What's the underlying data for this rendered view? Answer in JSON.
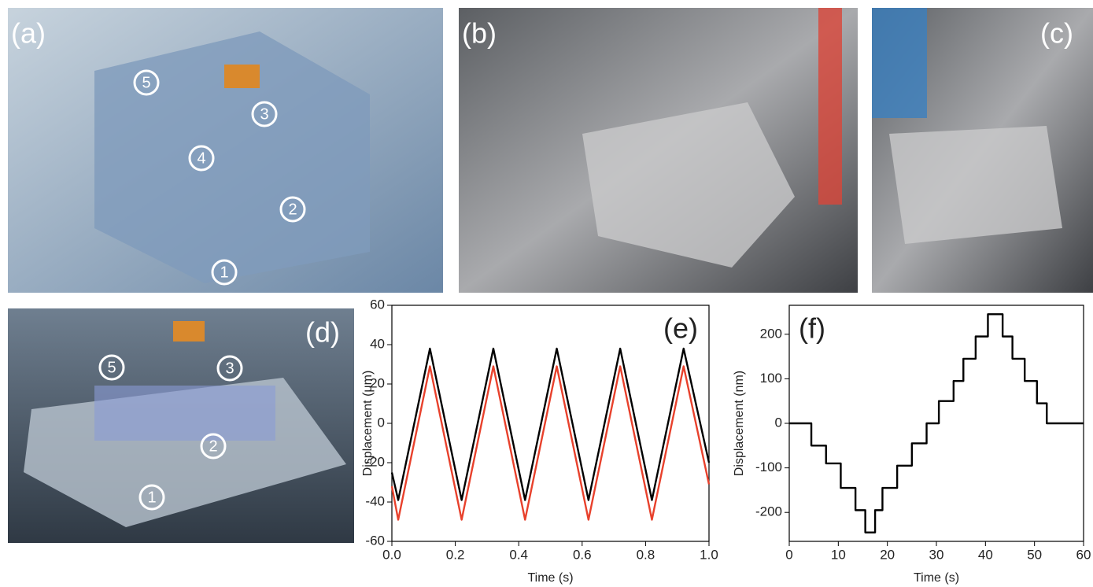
{
  "panels": [
    {
      "label": "(a)",
      "markers": [
        "5",
        "3",
        "4",
        "2",
        "1"
      ]
    },
    {
      "label": "(b)"
    },
    {
      "label": "(c)"
    },
    {
      "label": "(d)",
      "markers": [
        "5",
        "3",
        "2",
        "1"
      ]
    }
  ],
  "chart_data": [
    {
      "type": "line",
      "title": "(e)",
      "x_label": "Time (s)",
      "y_label": "Displacement (μm)",
      "x": [
        0,
        0.02,
        0.12,
        0.22,
        0.32,
        0.42,
        0.52,
        0.62,
        0.72,
        0.82,
        0.92,
        1.0
      ],
      "series": [
        {
          "color": "#000000",
          "values": [
            -25,
            -39,
            38,
            -39,
            38,
            -39,
            38,
            -39,
            38,
            -39,
            38,
            -20
          ]
        },
        {
          "color": "#e8412c",
          "values": [
            -32,
            -49,
            29,
            -49,
            29,
            -49,
            29,
            -49,
            29,
            -49,
            29,
            -31
          ]
        }
      ],
      "xlim": [
        0,
        1
      ],
      "xticks": [
        {
          "value": 0,
          "label": "0.0"
        },
        {
          "value": 0.2,
          "label": "0.2"
        },
        {
          "value": 0.4,
          "label": "0.4"
        },
        {
          "value": 0.6,
          "label": "0.6"
        },
        {
          "value": 0.8,
          "label": "0.8"
        },
        {
          "value": 1,
          "label": "1.0"
        }
      ],
      "ylim": [
        -60,
        60
      ],
      "yticks": [
        -60,
        -40,
        -20,
        0,
        20,
        40,
        60
      ]
    },
    {
      "type": "line",
      "title": "(f)",
      "x_label": "Time (s)",
      "y_label": "Displacement (nm)",
      "x": [
        0,
        4.5,
        4.5,
        7.5,
        7.5,
        10.5,
        10.5,
        13.5,
        13.5,
        15.5,
        15.5,
        17.5,
        17.5,
        19,
        19,
        22,
        22,
        25,
        25,
        28,
        28,
        30.5,
        30.5,
        33.5,
        33.5,
        35.5,
        35.5,
        38,
        38,
        40.5,
        40.5,
        43.5,
        43.5,
        45.5,
        45.5,
        48,
        48,
        50.5,
        50.5,
        52.5,
        52.5,
        60
      ],
      "series": [
        {
          "color": "#000000",
          "values": [
            0,
            0,
            -50,
            -50,
            -90,
            -90,
            -145,
            -145,
            -195,
            -195,
            -245,
            -245,
            -195,
            -195,
            -145,
            -145,
            -95,
            -95,
            -45,
            -45,
            0,
            0,
            50,
            50,
            95,
            95,
            145,
            145,
            195,
            195,
            245,
            245,
            195,
            195,
            145,
            145,
            95,
            95,
            45,
            45,
            0,
            0
          ]
        }
      ],
      "xlim": [
        0,
        60
      ],
      "xticks": [
        0,
        10,
        20,
        30,
        40,
        50,
        60
      ],
      "ylim": [
        -265,
        265
      ],
      "yticks": [
        -200,
        -100,
        0,
        100,
        200
      ]
    }
  ]
}
